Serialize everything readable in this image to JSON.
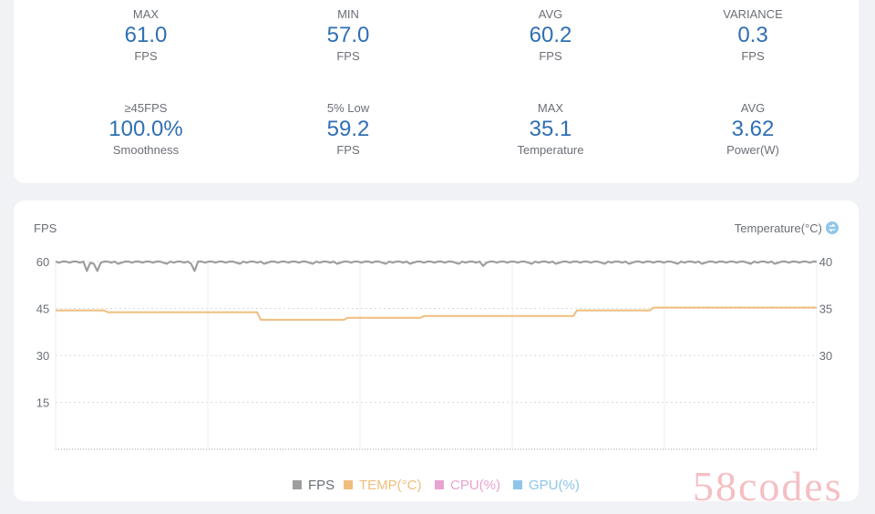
{
  "stats": [
    {
      "label": "MAX",
      "value": "61.0",
      "unit": "FPS"
    },
    {
      "label": "MIN",
      "value": "57.0",
      "unit": "FPS"
    },
    {
      "label": "AVG",
      "value": "60.2",
      "unit": "FPS"
    },
    {
      "label": "VARIANCE",
      "value": "0.3",
      "unit": "FPS"
    },
    {
      "label": "≥45FPS",
      "value": "100.0%",
      "unit": "Smoothness"
    },
    {
      "label": "5% Low",
      "value": "59.2",
      "unit": "FPS"
    },
    {
      "label": "MAX",
      "value": "35.1",
      "unit": "Temperature"
    },
    {
      "label": "AVG",
      "value": "3.62",
      "unit": "Power(W)"
    }
  ],
  "chart_data": {
    "type": "line",
    "ylabel_left": "FPS",
    "ylabel_right": "Temperature(°C)",
    "yticks_left": [
      "60",
      "45",
      "30",
      "15"
    ],
    "yticks_right": [
      "40",
      "35",
      "30"
    ],
    "ylim_left": [
      0,
      60
    ],
    "ylim_right": [
      20,
      40
    ],
    "grid": true,
    "legend_position": "bottom-center",
    "legend": [
      {
        "name": "FPS",
        "color": "#9e9e9e"
      },
      {
        "name": "TEMP(°C)",
        "color": "#f0bd7e"
      },
      {
        "name": "CPU(%)",
        "color": "#e9a3d1"
      },
      {
        "name": "GPU(%)",
        "color": "#8ec6ea"
      }
    ],
    "x_samples": 220,
    "fps_baseline": 60,
    "fps_dips": [
      [
        9,
        57
      ],
      [
        12,
        57
      ],
      [
        40,
        57
      ],
      [
        123,
        58.6
      ]
    ],
    "temp_steps": [
      [
        0,
        34.8
      ],
      [
        15,
        34.6
      ],
      [
        59,
        33.8
      ],
      [
        84,
        34
      ],
      [
        106,
        34.2
      ],
      [
        150,
        34.8
      ],
      [
        172,
        35.1
      ]
    ]
  },
  "watermark": "58codes"
}
